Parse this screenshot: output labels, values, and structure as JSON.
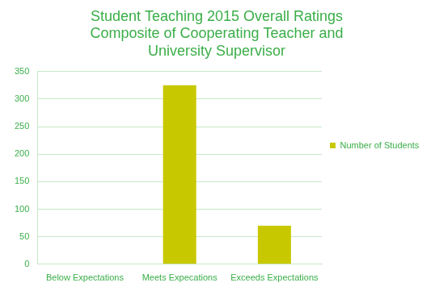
{
  "chart_data": {
    "type": "bar",
    "title": [
      "Student Teaching 2015 Overall Ratings",
      "Composite of Cooperating Teacher and",
      "University Supervisor"
    ],
    "categories": [
      "Below Expectations",
      "Meets Expecations",
      "Exceeds Expectations"
    ],
    "series": [
      {
        "name": "Number of Students",
        "color": "#c8c800",
        "values": [
          0,
          325,
          70
        ]
      }
    ],
    "ylim": [
      0,
      350
    ],
    "yticks": [
      0,
      50,
      100,
      150,
      200,
      250,
      300,
      350
    ],
    "grid": true,
    "legend": "right"
  }
}
